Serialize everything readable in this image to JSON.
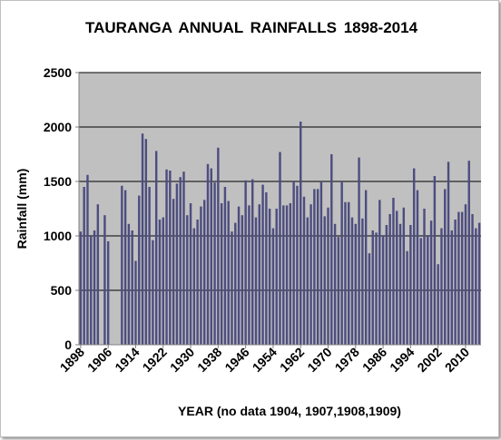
{
  "chart_data": {
    "type": "bar",
    "title": "TAURANGA ANNUAL RAINFALLS 1898-2014",
    "xlabel": "YEAR (no data 1904, 1907,1908,1909)",
    "ylabel": "Rainfall (mm)",
    "ylim": [
      0,
      2500
    ],
    "yticks": [
      "0",
      "500",
      "1000",
      "1500",
      "2000",
      "2500"
    ],
    "xticks": [
      "1898",
      "1906",
      "1914",
      "1922",
      "1930",
      "1938",
      "1946",
      "1954",
      "1962",
      "1970",
      "1978",
      "1986",
      "1994",
      "2002",
      "2010"
    ],
    "grid": true,
    "colors": {
      "bar": "#4d4d80",
      "plot_background": "#c0c0c0"
    },
    "categories": [
      "1898",
      "1899",
      "1900",
      "1901",
      "1902",
      "1903",
      "1904",
      "1905",
      "1906",
      "1907",
      "1908",
      "1909",
      "1910",
      "1911",
      "1912",
      "1913",
      "1914",
      "1915",
      "1916",
      "1917",
      "1918",
      "1919",
      "1920",
      "1921",
      "1922",
      "1923",
      "1924",
      "1925",
      "1926",
      "1927",
      "1928",
      "1929",
      "1930",
      "1931",
      "1932",
      "1933",
      "1934",
      "1935",
      "1936",
      "1937",
      "1938",
      "1939",
      "1940",
      "1941",
      "1942",
      "1943",
      "1944",
      "1945",
      "1946",
      "1947",
      "1948",
      "1949",
      "1950",
      "1951",
      "1952",
      "1953",
      "1954",
      "1955",
      "1956",
      "1957",
      "1958",
      "1959",
      "1960",
      "1961",
      "1962",
      "1963",
      "1964",
      "1965",
      "1966",
      "1967",
      "1968",
      "1969",
      "1970",
      "1971",
      "1972",
      "1973",
      "1974",
      "1975",
      "1976",
      "1977",
      "1978",
      "1979",
      "1980",
      "1981",
      "1982",
      "1983",
      "1984",
      "1985",
      "1986",
      "1987",
      "1988",
      "1989",
      "1990",
      "1991",
      "1992",
      "1993",
      "1994",
      "1995",
      "1996",
      "1997",
      "1998",
      "1999",
      "2000",
      "2001",
      "2002",
      "2003",
      "2004",
      "2005",
      "2006",
      "2007",
      "2008",
      "2009",
      "2010",
      "2011",
      "2012",
      "2013",
      "2014"
    ],
    "values": [
      1040,
      1450,
      1560,
      1000,
      1050,
      1290,
      null,
      1190,
      950,
      null,
      null,
      null,
      1460,
      1420,
      1110,
      1050,
      770,
      1370,
      1940,
      1890,
      1450,
      960,
      1780,
      1150,
      1170,
      1610,
      1600,
      1340,
      1480,
      1540,
      1590,
      1190,
      1300,
      1070,
      1150,
      1270,
      1330,
      1660,
      1620,
      1490,
      1810,
      1300,
      1450,
      1320,
      1040,
      1120,
      1270,
      1190,
      1510,
      1280,
      1520,
      1170,
      1290,
      1470,
      1400,
      1250,
      1070,
      1250,
      1770,
      1280,
      1280,
      1300,
      1500,
      1460,
      2050,
      1360,
      1170,
      1290,
      1430,
      1430,
      1500,
      1180,
      1260,
      1750,
      1110,
      990,
      1500,
      1310,
      1310,
      1170,
      1110,
      1720,
      1160,
      1420,
      840,
      1050,
      1030,
      1330,
      1000,
      1100,
      1200,
      1350,
      1230,
      1110,
      1260,
      860,
      1100,
      1620,
      1420,
      980,
      1250,
      1000,
      1140,
      1550,
      740,
      1070,
      1430,
      1680,
      1050,
      1150,
      1220,
      1220,
      1290,
      1690,
      1200,
      1070,
      1120
    ]
  }
}
